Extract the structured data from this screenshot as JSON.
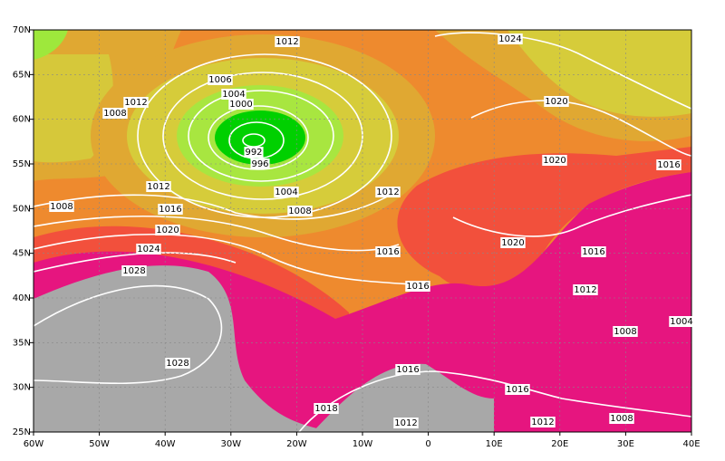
{
  "map": {
    "lon_labels": [
      "60W",
      "50W",
      "40W",
      "30W",
      "20W",
      "10W",
      "0",
      "10E",
      "20E",
      "30E",
      "40E"
    ],
    "lat_labels": [
      "70N",
      "65N",
      "60N",
      "55N",
      "50N",
      "45N",
      "40N",
      "35N",
      "30N",
      "25N"
    ],
    "isobar_labels": [
      "1012",
      "1024",
      "1006",
      "1004",
      "1000",
      "1012",
      "1008",
      "1020",
      "992",
      "996",
      "1020",
      "1016",
      "1012",
      "1004",
      "1012",
      "1008",
      "1016",
      "1008",
      "1020",
      "1020",
      "1024",
      "1016",
      "1016",
      "1028",
      "1016",
      "1012",
      "1004",
      "1008",
      "1028",
      "1016",
      "1016",
      "1018",
      "1012",
      "1012",
      "1008"
    ]
  }
}
